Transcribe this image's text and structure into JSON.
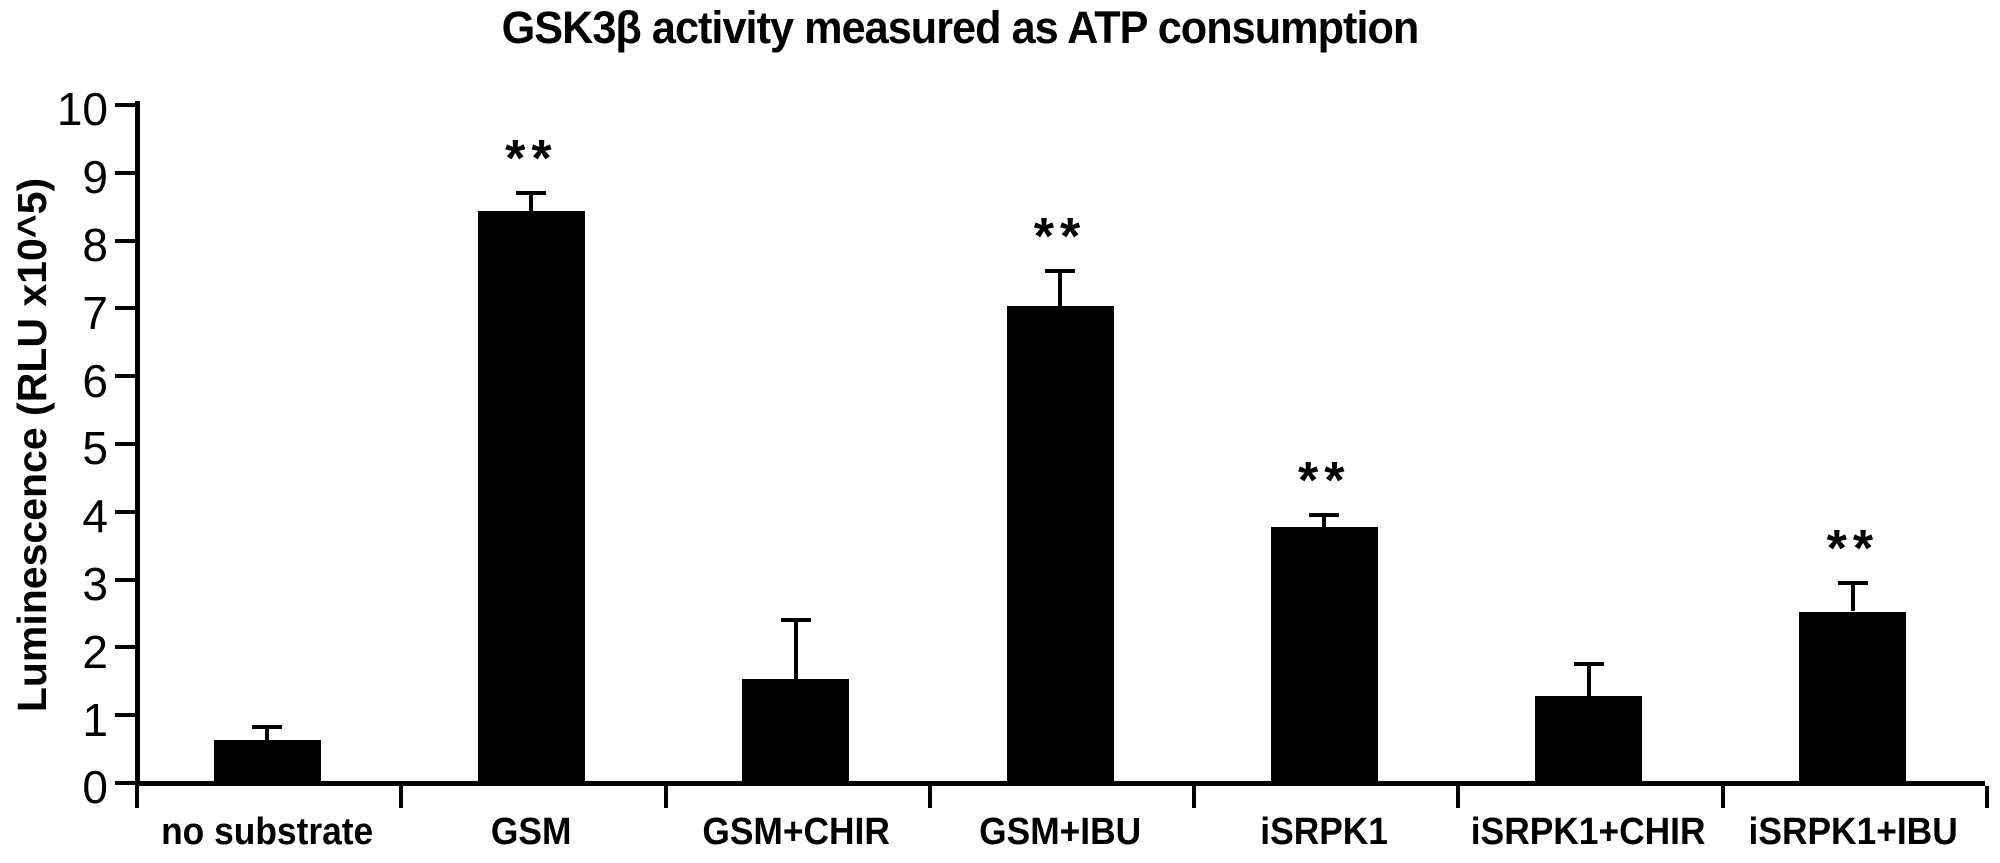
{
  "figure": {
    "background_color": "#ffffff",
    "bar_color": "#000000",
    "axis_color": "#000000",
    "text_color": "#000000"
  },
  "chart_data": {
    "type": "bar",
    "title": "GSK3β activity measured as ATP consumption",
    "xlabel": "",
    "ylabel": "Luminescence (RLU x10^5)",
    "categories": [
      "no substrate",
      "GSM",
      "GSM+CHIR",
      "GSM+IBU",
      "iSRPK1",
      "iSRPK1+CHIR",
      "iSRPK1+IBU"
    ],
    "values": [
      0.6,
      8.4,
      1.5,
      7.0,
      3.75,
      1.25,
      2.5
    ],
    "error_bars_upper": [
      0.22,
      0.3,
      0.9,
      0.55,
      0.2,
      0.5,
      0.45
    ],
    "significance": [
      "",
      "**",
      "",
      "**",
      "**",
      "",
      "**"
    ],
    "ylim": [
      0,
      10
    ],
    "ytick_step": 1,
    "ytick_labels": [
      "0",
      "1",
      "2",
      "3",
      "4",
      "5",
      "6",
      "7",
      "8",
      "9",
      "10"
    ],
    "grid": false,
    "legend": null
  }
}
